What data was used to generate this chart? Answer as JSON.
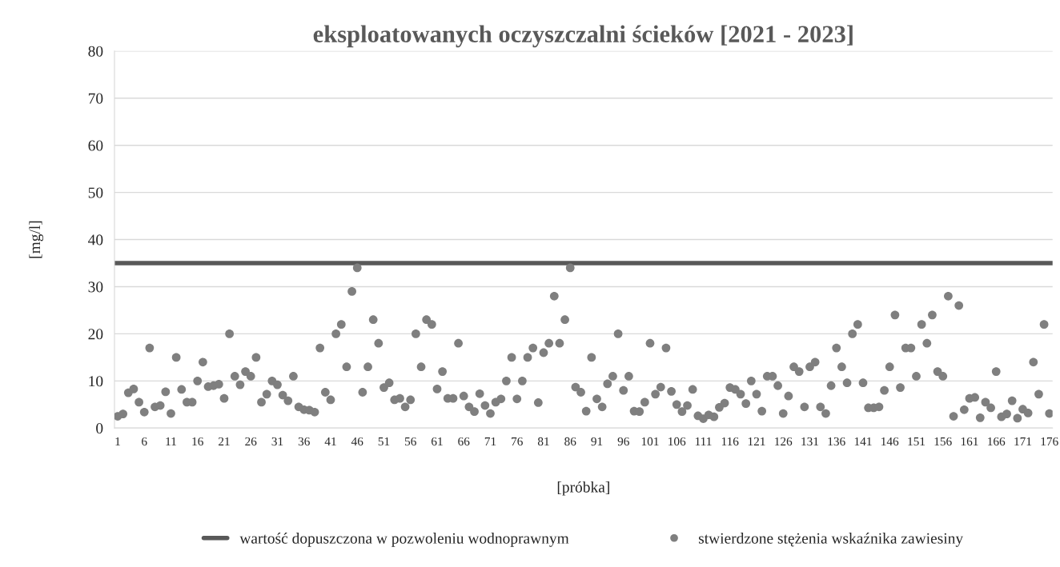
{
  "chart_data": {
    "type": "scatter",
    "title": "eksploatowanych oczyszczalni ścieków [2021 - 2023]",
    "xlabel": "[próbka]",
    "ylabel": "[mg/l]",
    "categories": [
      "1",
      null,
      null,
      null,
      null,
      "6",
      null,
      null,
      null,
      null,
      "11",
      null,
      null,
      null,
      null,
      "16",
      null,
      null,
      null,
      null,
      "21",
      null,
      null,
      null,
      null,
      "26",
      null,
      null,
      null,
      null,
      "31",
      null,
      null,
      null,
      null,
      "36",
      null,
      null,
      null,
      null,
      "41",
      null,
      null,
      null,
      null,
      "46",
      null,
      null,
      null,
      null,
      "51",
      null,
      null,
      null,
      null,
      "56",
      null,
      null,
      null,
      null,
      "61",
      null,
      null,
      null,
      null,
      "66",
      null,
      null,
      null,
      null,
      "71",
      null,
      null,
      null,
      null,
      "76",
      null,
      null,
      null,
      null,
      "81",
      null,
      null,
      null,
      null,
      "86",
      null,
      null,
      null,
      null,
      "91",
      null,
      null,
      null,
      null,
      "96",
      null,
      null,
      null,
      null,
      "101",
      null,
      null,
      null,
      null,
      "106",
      null,
      null,
      null,
      null,
      "111",
      null,
      null,
      null,
      null,
      "116",
      null,
      null,
      null,
      null,
      "121",
      null,
      null,
      null,
      null,
      "126",
      null,
      null,
      null,
      null,
      "131",
      null,
      null,
      null,
      null,
      "136",
      null,
      null,
      null,
      null,
      "141",
      null,
      null,
      null,
      null,
      "146",
      null,
      null,
      null,
      null,
      "151",
      null,
      null,
      null,
      null,
      "156",
      null,
      null,
      null,
      null,
      "161",
      null,
      null,
      null,
      null,
      "166",
      null,
      null,
      null,
      null,
      "171",
      null,
      null,
      null,
      null,
      "176"
    ],
    "series": [
      {
        "name": "stwierdzone stężenia wskaźnika zawiesiny",
        "color": "#7f7f7f",
        "values": [
          2.5,
          3,
          7.5,
          8.3,
          5.5,
          3.4,
          17,
          4.5,
          4.8,
          7.7,
          3.1,
          15,
          8.2,
          5.5,
          5.5,
          10,
          14,
          8.8,
          9,
          9.3,
          6.3,
          20,
          11,
          9.2,
          12,
          11,
          15,
          5.5,
          7.2,
          10,
          9.2,
          7,
          5.8,
          11,
          4.5,
          3.9,
          3.8,
          3.4,
          17,
          7.6,
          6,
          20,
          22,
          13,
          29,
          34,
          7.6,
          13,
          23,
          18,
          8.6,
          9.6,
          6,
          6.3,
          4.5,
          6,
          20,
          13,
          23,
          22,
          8.3,
          12,
          6.3,
          6.3,
          18,
          6.8,
          4.5,
          3.5,
          7.3,
          4.8,
          3.1,
          5.5,
          6.2,
          10,
          15,
          6.2,
          10,
          15,
          17,
          5.4,
          16,
          18,
          28,
          18,
          23,
          34,
          8.7,
          7.6,
          3.6,
          15,
          6.2,
          4.5,
          9.4,
          11,
          20,
          8,
          11,
          3.6,
          3.5,
          5.5,
          18,
          7.2,
          8.7,
          17,
          7.8,
          5,
          3.5,
          4.8,
          8.2,
          2.6,
          2,
          2.8,
          2.4,
          4.4,
          5.3,
          8.6,
          8.2,
          7.2,
          5.2,
          10,
          7.2,
          3.6,
          11,
          11,
          9,
          3.1,
          6.8,
          13,
          12,
          4.5,
          13,
          14,
          4.5,
          3.1,
          9,
          17,
          13,
          9.6,
          20,
          22,
          9.6,
          4.3,
          4.3,
          4.5,
          8,
          13,
          24,
          8.6,
          17,
          17,
          11,
          22,
          18,
          24,
          12,
          11,
          28,
          2.5,
          26,
          3.9,
          6.3,
          6.5,
          2.2,
          5.5,
          4.3,
          12,
          2.4,
          3,
          5.8,
          2.1,
          4,
          3.2,
          14,
          7.2,
          22,
          3.1
        ]
      }
    ],
    "ref_lines": [
      {
        "axis": "y",
        "value": 35,
        "label": "wartość dopuszczona w pozwoleniu wodnoprawnym",
        "color": "#595959",
        "line_style": "solid"
      }
    ],
    "ylim": [
      0,
      80
    ],
    "yticks": [
      0,
      10,
      20,
      30,
      40,
      50,
      60,
      70,
      80
    ],
    "grid": "y",
    "legend": "bottom",
    "marker": "circle"
  }
}
